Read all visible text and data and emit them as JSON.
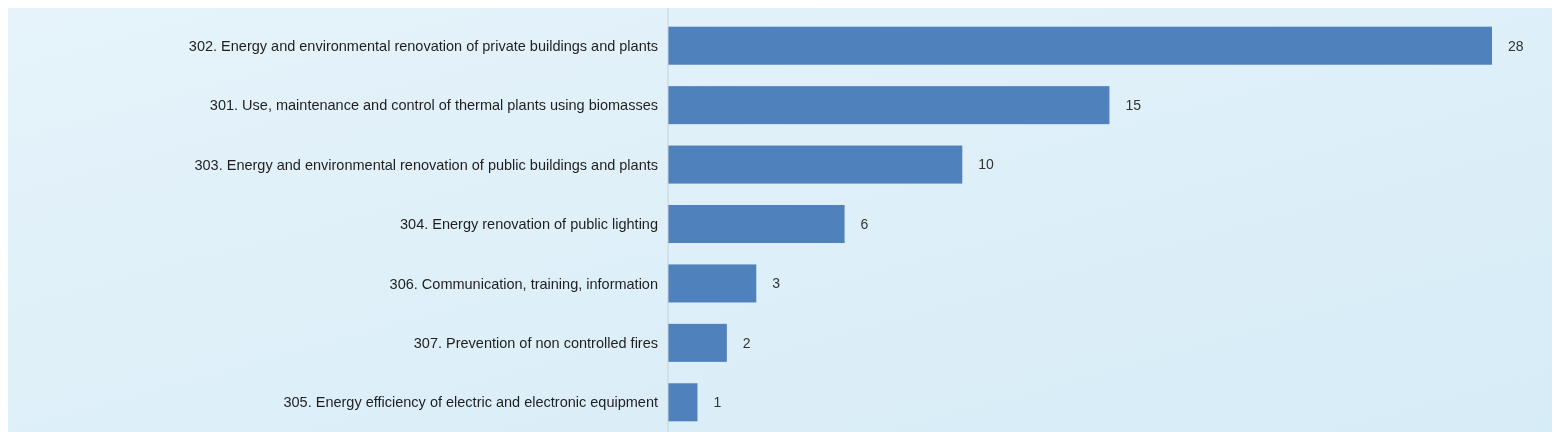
{
  "chart_data": {
    "type": "bar",
    "orientation": "horizontal",
    "categories": [
      "302. Energy and environmental renovation of private buildings and plants",
      "301. Use, maintenance and control of thermal plants using biomasses",
      "303. Energy and environmental renovation of public buildings and plants",
      "304. Energy renovation of public lighting",
      "306. Communication, training, information",
      "307. Prevention of non controlled fires",
      "305. Energy efficiency of electric and electronic equipment"
    ],
    "values": [
      28,
      15,
      10,
      6,
      3,
      2,
      1
    ],
    "color": "#4f81bd",
    "data_labels": true,
    "tick_labels": "y"
  }
}
